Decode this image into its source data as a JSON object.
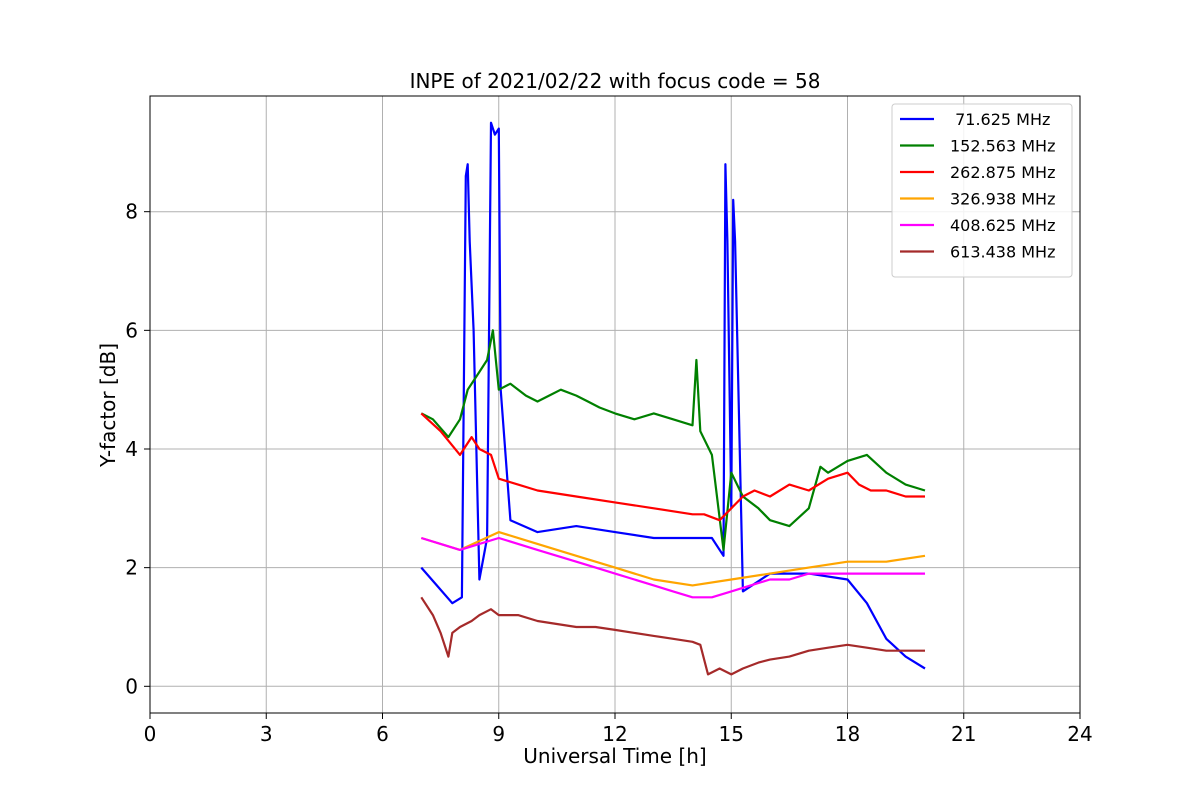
{
  "chart_data": {
    "type": "line",
    "title": "INPE of 2021/02/22 with focus code = 58",
    "xlabel": "Universal Time [h]",
    "ylabel": "Y-factor [dB]",
    "xlim": [
      0,
      24
    ],
    "ylim": [
      -0.45,
      9.95
    ],
    "xticks": [
      0,
      3,
      6,
      9,
      12,
      15,
      18,
      21,
      24
    ],
    "yticks": [
      0,
      2,
      4,
      6,
      8
    ],
    "grid": true,
    "legend_position": "top-right",
    "series": [
      {
        "name": " 71.625 MHz",
        "color": "#0000ff",
        "x": [
          7.0,
          7.4,
          7.8,
          8.05,
          8.15,
          8.2,
          8.25,
          8.35,
          8.5,
          8.7,
          8.8,
          8.9,
          9.0,
          9.05,
          9.3,
          10.0,
          11.0,
          12.0,
          13.0,
          14.0,
          14.5,
          14.8,
          14.85,
          14.9,
          15.0,
          15.05,
          15.1,
          15.3,
          16.0,
          17.0,
          18.0,
          18.5,
          19.0,
          19.5,
          20.0
        ],
        "y": [
          2.0,
          1.7,
          1.4,
          1.5,
          8.6,
          8.8,
          7.5,
          6.0,
          1.8,
          2.5,
          9.5,
          9.3,
          9.4,
          5.0,
          2.8,
          2.6,
          2.7,
          2.6,
          2.5,
          2.5,
          2.5,
          2.2,
          8.8,
          7.5,
          3.0,
          8.2,
          7.5,
          1.6,
          1.9,
          1.9,
          1.8,
          1.4,
          0.8,
          0.5,
          0.3
        ]
      },
      {
        "name": "152.563 MHz",
        "color": "#008000",
        "x": [
          7.0,
          7.3,
          7.7,
          8.0,
          8.2,
          8.5,
          8.7,
          8.85,
          9.0,
          9.3,
          9.7,
          10.0,
          10.3,
          10.6,
          11.0,
          11.3,
          11.6,
          12.0,
          12.5,
          13.0,
          13.5,
          14.0,
          14.1,
          14.2,
          14.5,
          14.8,
          15.0,
          15.3,
          15.7,
          16.0,
          16.5,
          17.0,
          17.3,
          17.5,
          18.0,
          18.5,
          19.0,
          19.5,
          20.0
        ],
        "y": [
          4.6,
          4.5,
          4.2,
          4.5,
          5.0,
          5.3,
          5.5,
          6.0,
          5.0,
          5.1,
          4.9,
          4.8,
          4.9,
          5.0,
          4.9,
          4.8,
          4.7,
          4.6,
          4.5,
          4.6,
          4.5,
          4.4,
          5.5,
          4.3,
          3.9,
          2.3,
          3.6,
          3.2,
          3.0,
          2.8,
          2.7,
          3.0,
          3.7,
          3.6,
          3.8,
          3.9,
          3.6,
          3.4,
          3.3
        ]
      },
      {
        "name": "262.875 MHz",
        "color": "#ff0000",
        "x": [
          7.0,
          7.5,
          8.0,
          8.3,
          8.5,
          8.8,
          9.0,
          9.5,
          10.0,
          11.0,
          12.0,
          13.0,
          14.0,
          14.3,
          14.7,
          15.0,
          15.3,
          15.6,
          16.0,
          16.5,
          17.0,
          17.5,
          18.0,
          18.3,
          18.6,
          19.0,
          19.5,
          20.0
        ],
        "y": [
          4.6,
          4.3,
          3.9,
          4.2,
          4.0,
          3.9,
          3.5,
          3.4,
          3.3,
          3.2,
          3.1,
          3.0,
          2.9,
          2.9,
          2.8,
          3.0,
          3.2,
          3.3,
          3.2,
          3.4,
          3.3,
          3.5,
          3.6,
          3.4,
          3.3,
          3.3,
          3.2,
          3.2
        ]
      },
      {
        "name": "326.938 MHz",
        "color": "#ffa500",
        "x": [
          7.0,
          8.0,
          9.0,
          10.0,
          11.0,
          12.0,
          13.0,
          14.0,
          15.0,
          16.0,
          17.0,
          18.0,
          19.0,
          20.0
        ],
        "y": [
          2.5,
          2.3,
          2.6,
          2.4,
          2.2,
          2.0,
          1.8,
          1.7,
          1.8,
          1.9,
          2.0,
          2.1,
          2.1,
          2.2
        ]
      },
      {
        "name": "408.625 MHz",
        "color": "#ff00ff",
        "x": [
          7.0,
          7.5,
          8.0,
          8.5,
          9.0,
          9.5,
          10.0,
          10.5,
          11.0,
          11.5,
          12.0,
          12.5,
          13.0,
          13.5,
          14.0,
          14.5,
          15.0,
          15.5,
          16.0,
          16.5,
          17.0,
          17.5,
          18.0,
          18.5,
          19.0,
          19.5,
          20.0
        ],
        "y": [
          2.5,
          2.4,
          2.3,
          2.4,
          2.5,
          2.4,
          2.3,
          2.2,
          2.1,
          2.0,
          1.9,
          1.8,
          1.7,
          1.6,
          1.5,
          1.5,
          1.6,
          1.7,
          1.8,
          1.8,
          1.9,
          1.9,
          1.9,
          1.9,
          1.9,
          1.9,
          1.9
        ]
      },
      {
        "name": "613.438 MHz",
        "color": "#a52a2a",
        "x": [
          7.0,
          7.3,
          7.5,
          7.7,
          7.8,
          8.0,
          8.3,
          8.5,
          8.8,
          9.0,
          9.5,
          10.0,
          10.5,
          11.0,
          11.5,
          12.0,
          12.5,
          13.0,
          13.5,
          14.0,
          14.2,
          14.4,
          14.7,
          15.0,
          15.3,
          15.7,
          16.0,
          16.5,
          17.0,
          17.5,
          18.0,
          18.5,
          19.0,
          19.5,
          20.0
        ],
        "y": [
          1.5,
          1.2,
          0.9,
          0.5,
          0.9,
          1.0,
          1.1,
          1.2,
          1.3,
          1.2,
          1.2,
          1.1,
          1.05,
          1.0,
          1.0,
          0.95,
          0.9,
          0.85,
          0.8,
          0.75,
          0.7,
          0.2,
          0.3,
          0.2,
          0.3,
          0.4,
          0.45,
          0.5,
          0.6,
          0.65,
          0.7,
          0.65,
          0.6,
          0.6,
          0.6
        ]
      }
    ]
  }
}
